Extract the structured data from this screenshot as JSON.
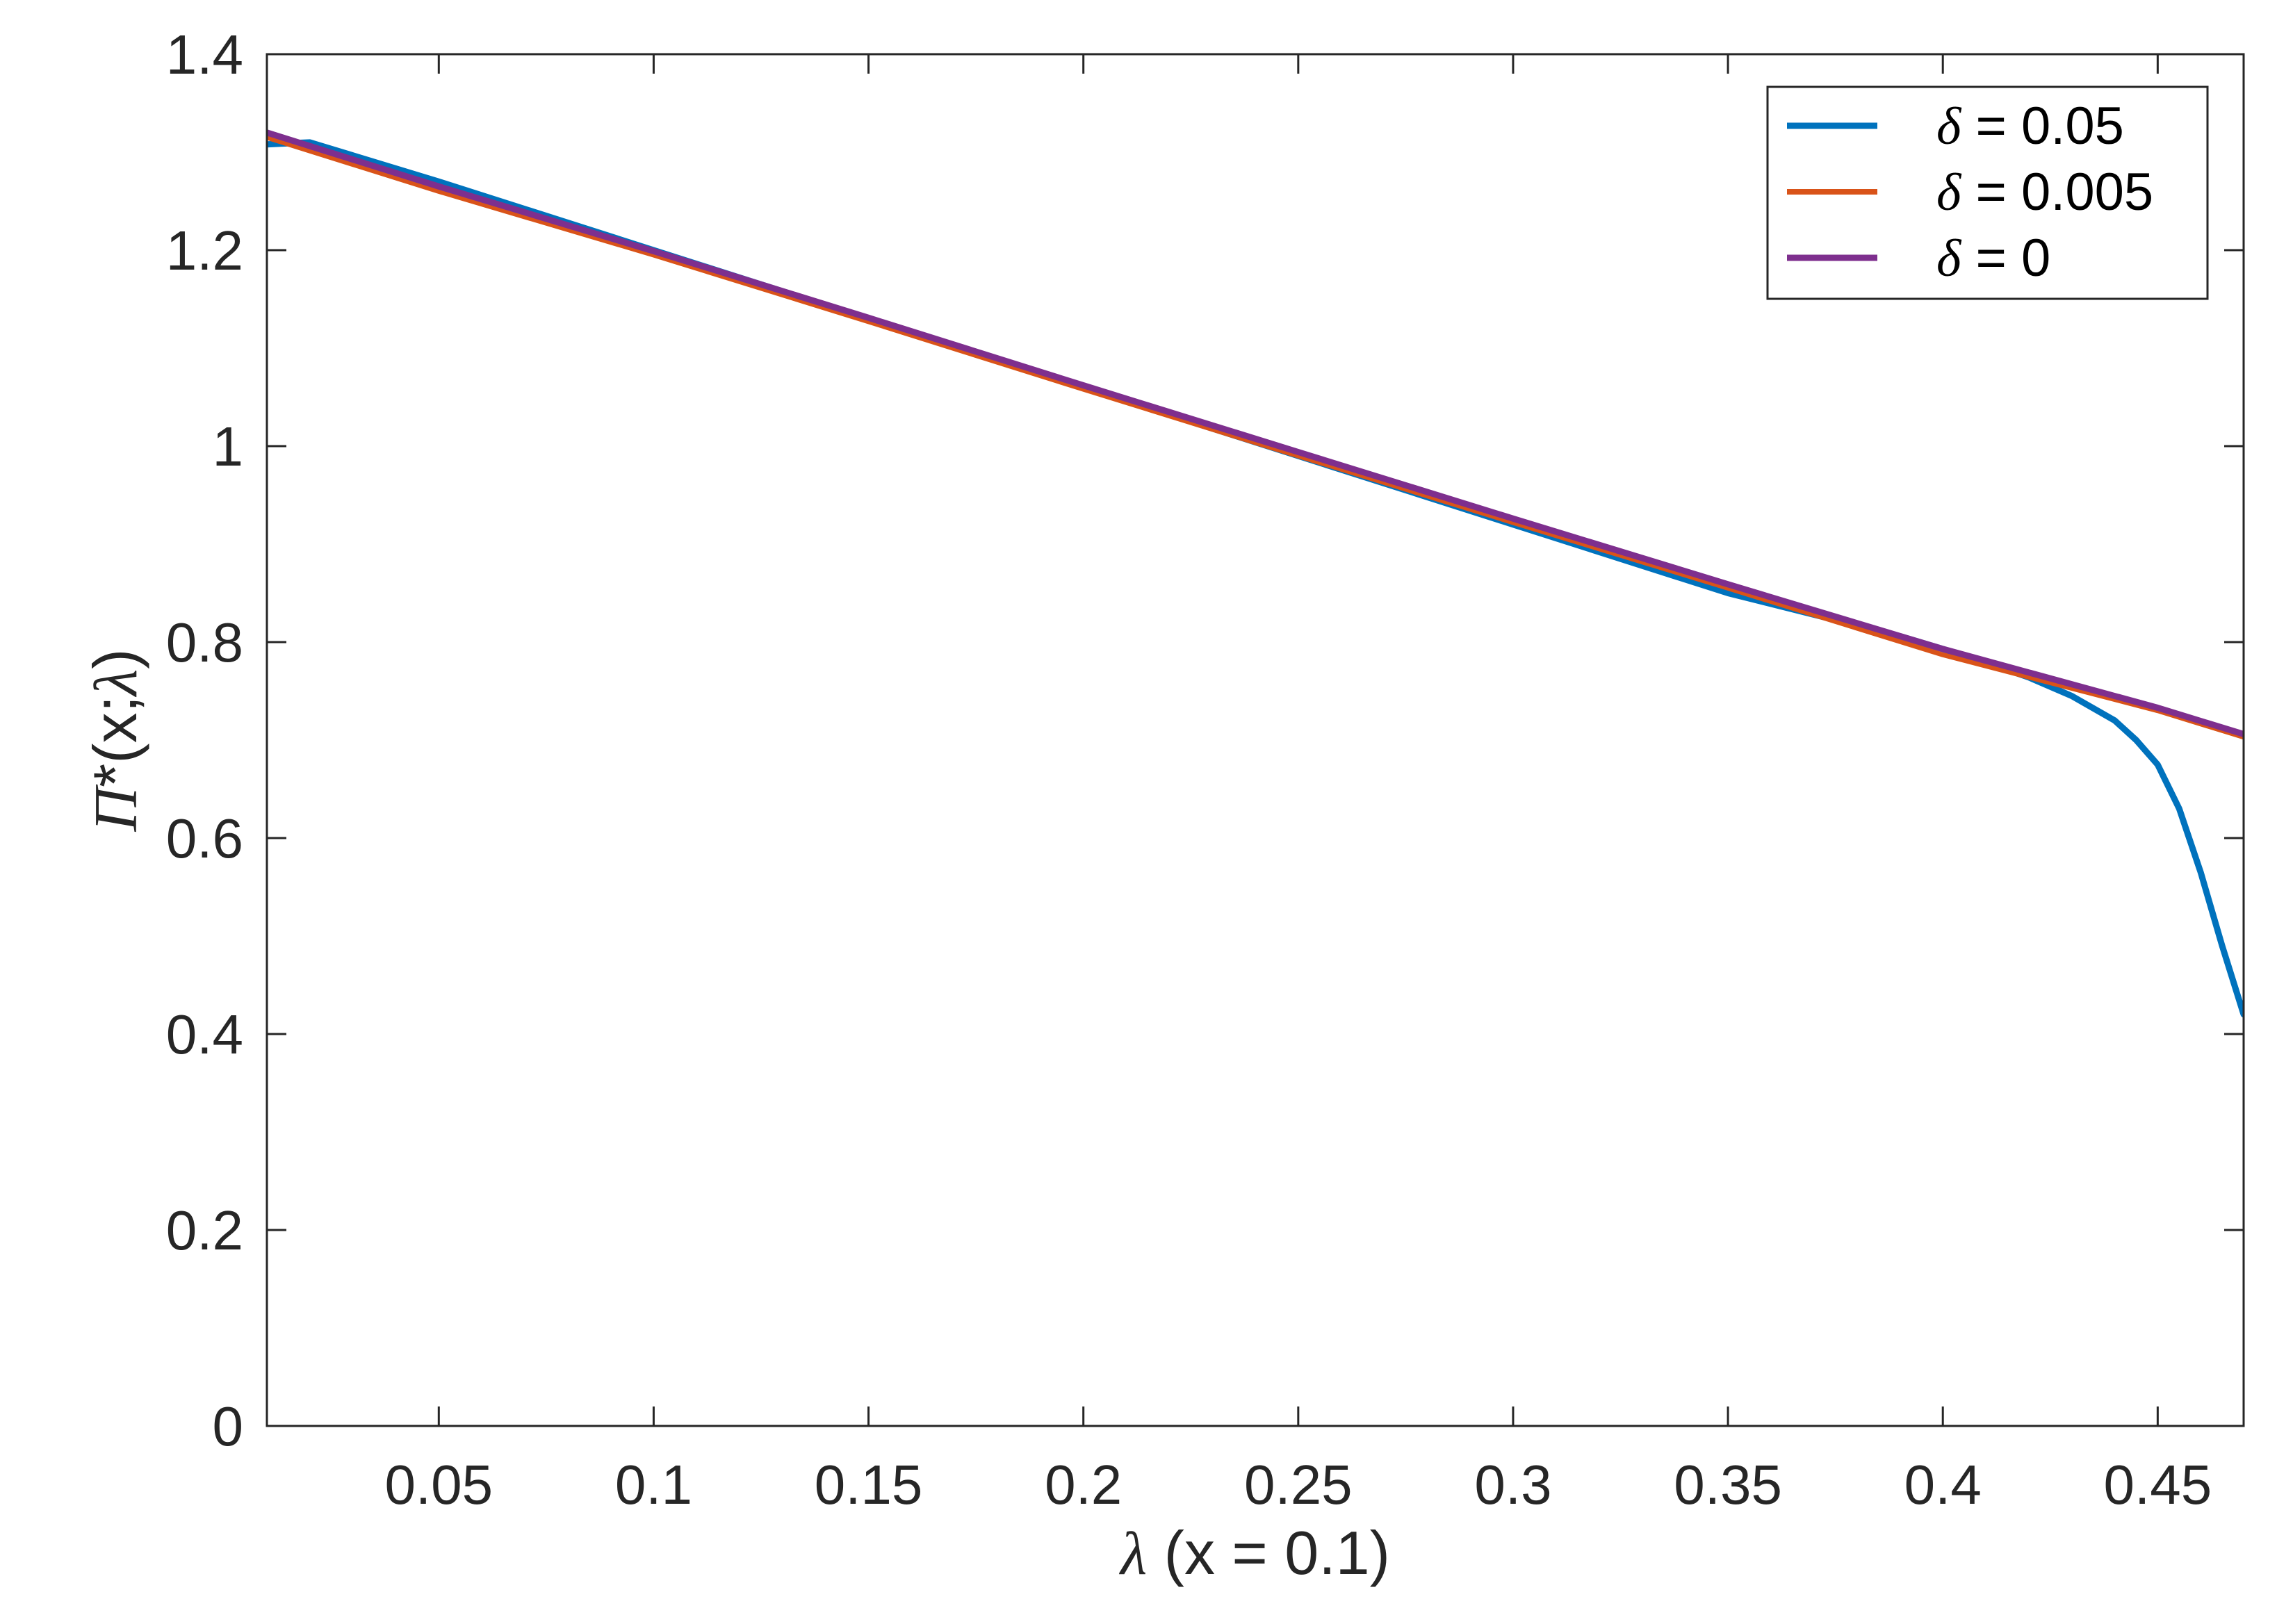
{
  "chart_data": {
    "type": "line",
    "title": "",
    "xlabel": "λ (x = 0.1)",
    "ylabel": "Π*(x;λ)",
    "xlim": [
      0.01,
      0.47
    ],
    "ylim": [
      0,
      1.4
    ],
    "xticks": [
      0.05,
      0.1,
      0.15,
      0.2,
      0.25,
      0.3,
      0.35,
      0.4,
      0.45
    ],
    "xtick_labels": [
      "0.05",
      "0.1",
      "0.15",
      "0.2",
      "0.25",
      "0.3",
      "0.35",
      "0.4",
      "0.45"
    ],
    "yticks": [
      0,
      0.2,
      0.4,
      0.6,
      0.8,
      1,
      1.2,
      1.4
    ],
    "ytick_labels": [
      "0",
      "0.2",
      "0.4",
      "0.6",
      "0.8",
      "1",
      "1.2",
      "1.4"
    ],
    "grid": false,
    "legend_position": "top-right",
    "series": [
      {
        "name": "δ = 0.05",
        "color": "#0072BD",
        "x": [
          0.01,
          0.015,
          0.02,
          0.05,
          0.1,
          0.15,
          0.2,
          0.25,
          0.3,
          0.35,
          0.39,
          0.4,
          0.41,
          0.42,
          0.43,
          0.44,
          0.445,
          0.45,
          0.455,
          0.46,
          0.465,
          0.47
        ],
        "y": [
          1.308,
          1.309,
          1.31,
          1.27,
          1.2,
          1.13,
          1.06,
          0.99,
          0.92,
          0.85,
          0.806,
          0.793,
          0.779,
          0.764,
          0.745,
          0.72,
          0.7,
          0.675,
          0.63,
          0.565,
          0.49,
          0.42
        ]
      },
      {
        "name": "δ = 0.005",
        "color": "#D95319",
        "x": [
          0.01,
          0.05,
          0.1,
          0.15,
          0.2,
          0.25,
          0.3,
          0.35,
          0.4,
          0.45,
          0.47
        ],
        "y": [
          1.315,
          1.26,
          1.195,
          1.127,
          1.058,
          0.99,
          0.922,
          0.855,
          0.787,
          0.73,
          0.703
        ]
      },
      {
        "name": "δ = 0",
        "color": "#7E2F8E",
        "x": [
          0.01,
          0.05,
          0.1,
          0.15,
          0.2,
          0.25,
          0.3,
          0.35,
          0.4,
          0.45,
          0.47
        ],
        "y": [
          1.32,
          1.265,
          1.199,
          1.131,
          1.062,
          0.994,
          0.926,
          0.859,
          0.793,
          0.733,
          0.706
        ]
      }
    ]
  }
}
